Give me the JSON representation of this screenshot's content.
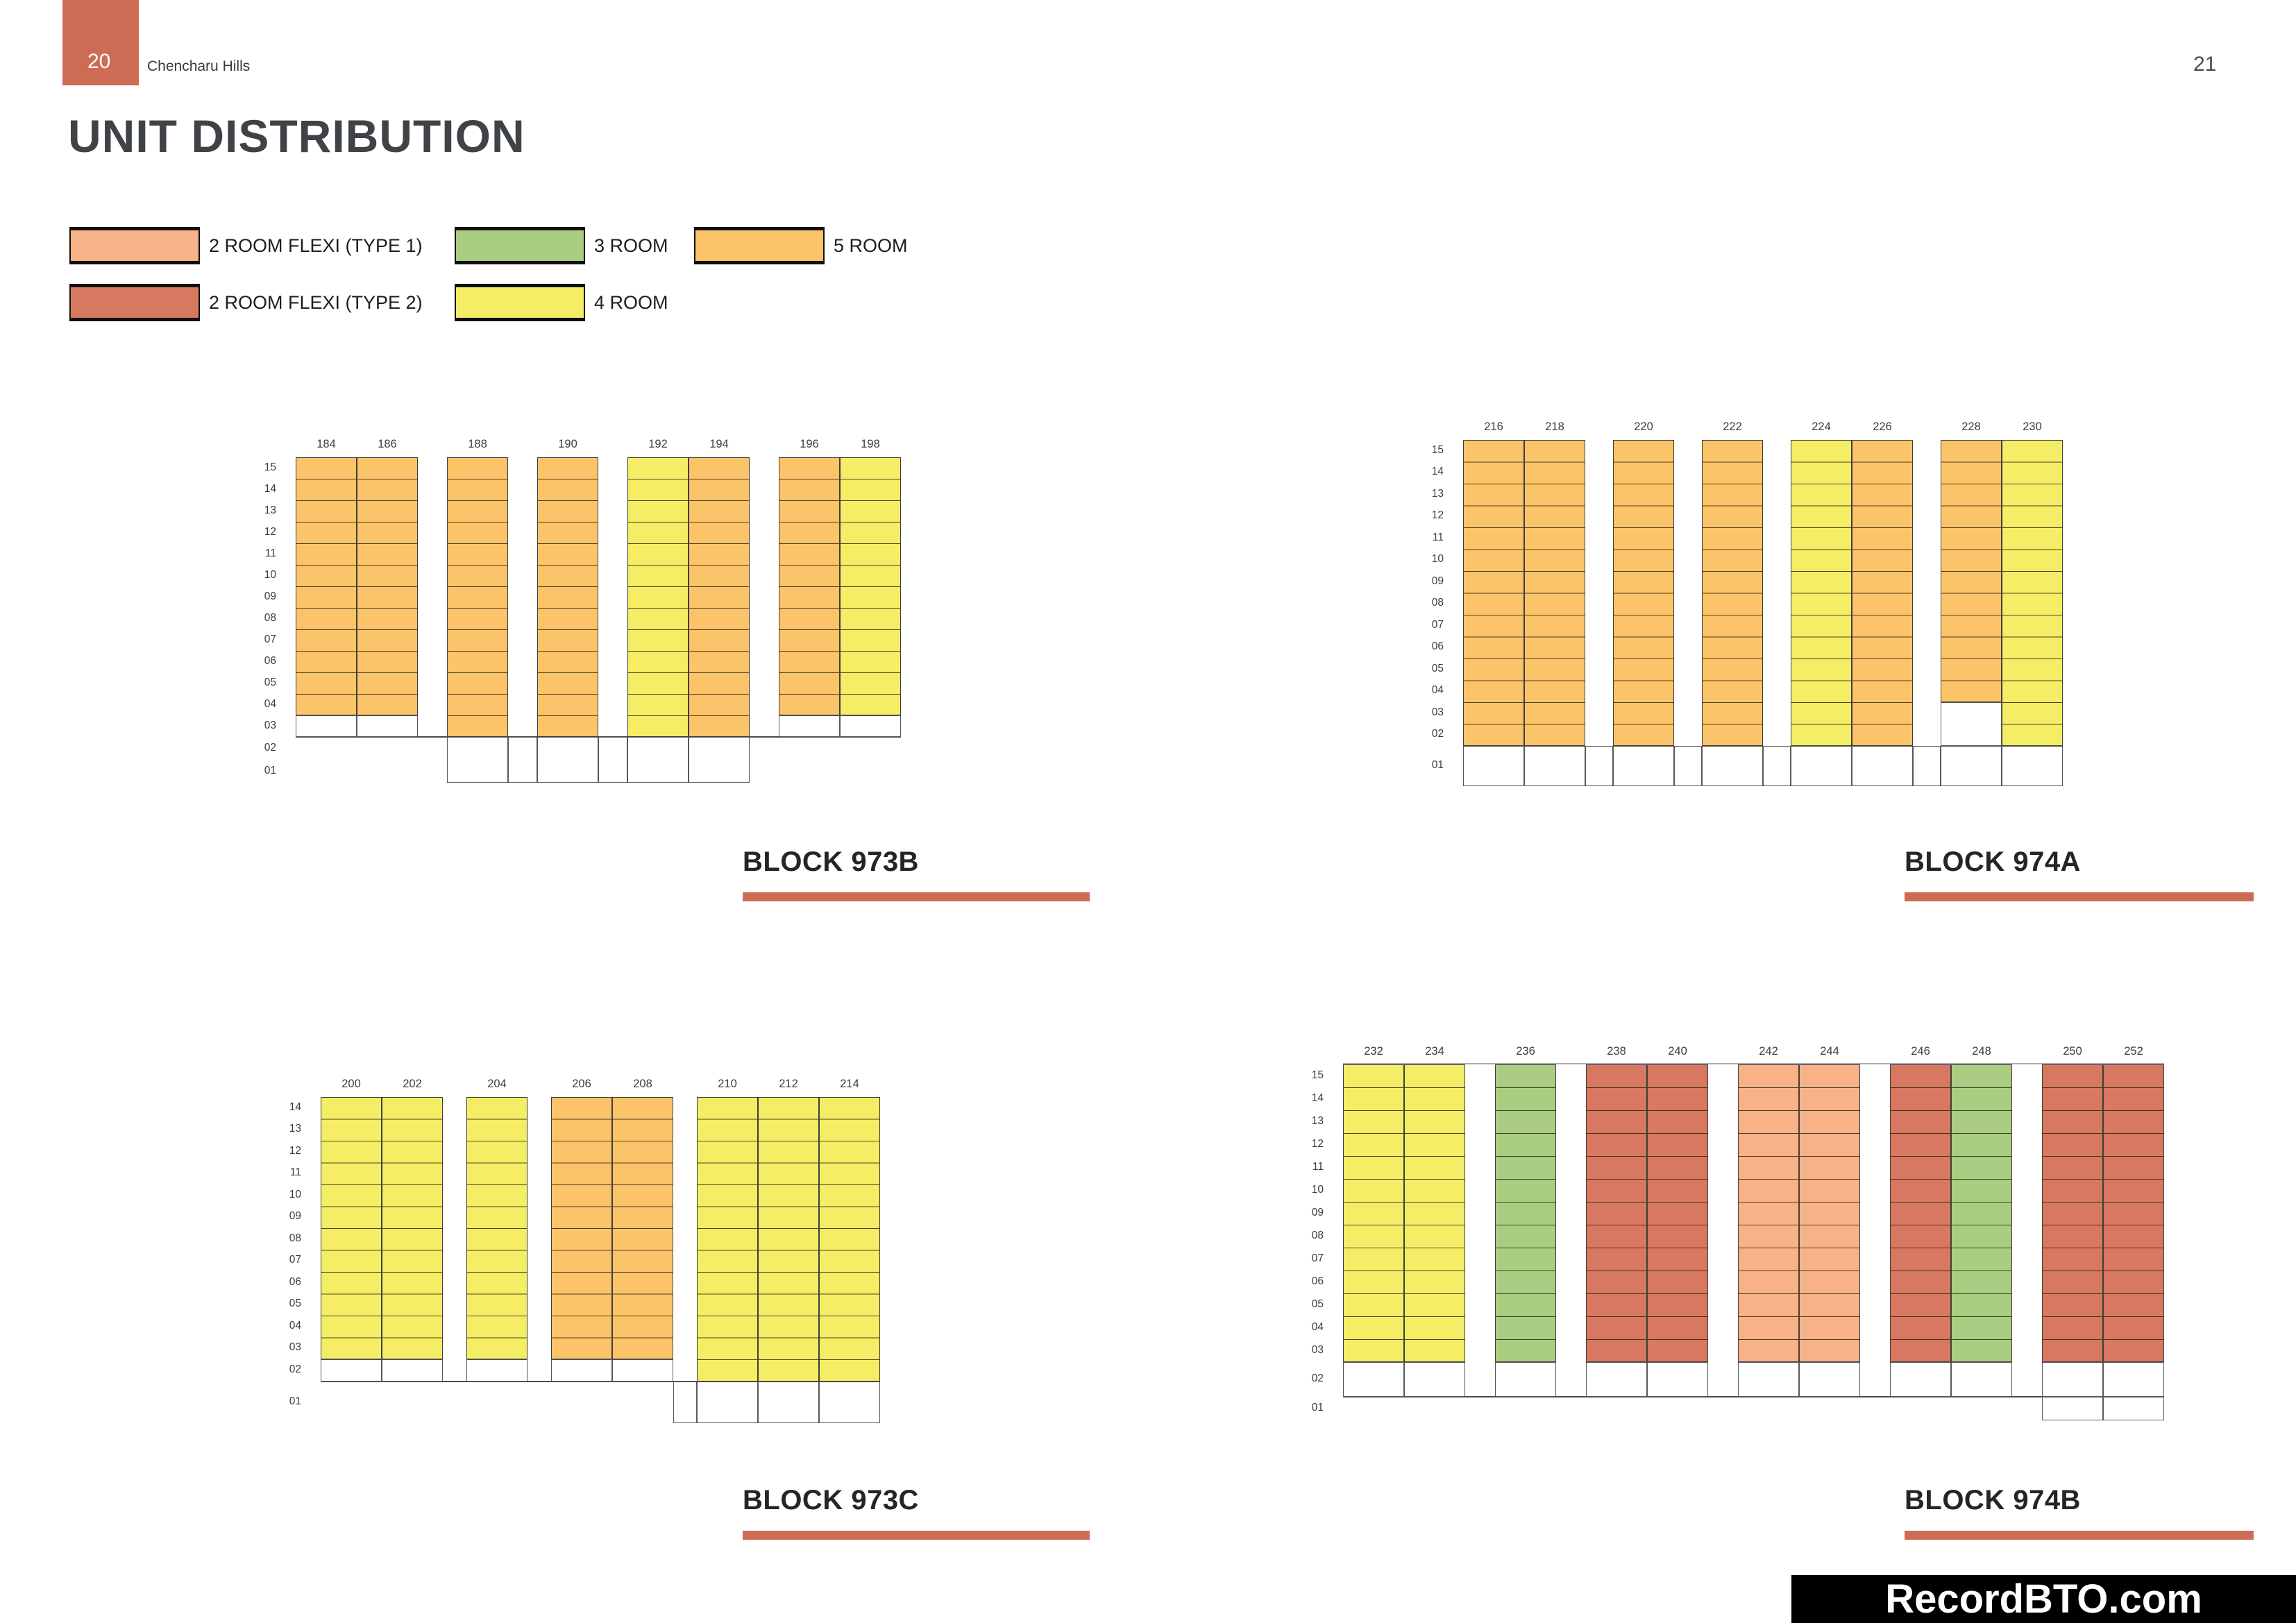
{
  "page": {
    "tab_page_number": "20",
    "project_name": "Chencharu Hills",
    "page_number_right": "21",
    "title": "UNIT DISTRIBUTION",
    "watermark": "RecordBTO.com"
  },
  "colors": {
    "5_room": "#FBC468",
    "4_room": "#F5ED65",
    "3_room": "#A9CD81",
    "2_room_flexi_type_1": "#F7B288",
    "2_room_flexi_type_2": "#D87861",
    "accent": "#CD6B55",
    "grid_line": "#3E3E3E",
    "void": "#FFFFFF"
  },
  "legend": {
    "items": [
      {
        "label": "2 ROOM FLEXI (TYPE 1)",
        "color_key": "2_room_flexi_type_1"
      },
      {
        "label": "2 ROOM FLEXI (TYPE 2)",
        "color_key": "2_room_flexi_type_2"
      },
      {
        "label": "3 ROOM",
        "color_key": "3_room"
      },
      {
        "label": "4 ROOM",
        "color_key": "4_room"
      },
      {
        "label": "5 ROOM",
        "color_key": "5_room"
      }
    ]
  },
  "chart_data": {
    "type": "heatmap",
    "title": "UNIT DISTRIBUTION",
    "legend_position": "top-left",
    "description": "Four HDB block charts; rows are floor levels, columns are unit stacks, cell color encodes flat type, white bordered cells are voids/ground level.",
    "blocks": [
      {
        "id": "973B",
        "name": "BLOCK 973B",
        "floors": [
          "15",
          "14",
          "13",
          "12",
          "11",
          "10",
          "09",
          "08",
          "07",
          "06",
          "05",
          "04",
          "03",
          "02",
          "01"
        ],
        "stack_groups": [
          [
            "184",
            "186"
          ],
          [
            "188"
          ],
          [
            "190"
          ],
          [
            "192",
            "194"
          ],
          [
            "196",
            "198"
          ]
        ],
        "units": {
          "184": [
            {
              "from": "15",
              "to": "04",
              "type": "5_room"
            },
            {
              "from": "03",
              "to": "03",
              "type": "void"
            }
          ],
          "186": [
            {
              "from": "15",
              "to": "04",
              "type": "5_room"
            },
            {
              "from": "03",
              "to": "03",
              "type": "void"
            }
          ],
          "188": [
            {
              "from": "15",
              "to": "03",
              "type": "5_room"
            }
          ],
          "190": [
            {
              "from": "15",
              "to": "03",
              "type": "5_room"
            }
          ],
          "192": [
            {
              "from": "15",
              "to": "03",
              "type": "4_room"
            }
          ],
          "194": [
            {
              "from": "15",
              "to": "03",
              "type": "5_room"
            }
          ],
          "196": [
            {
              "from": "15",
              "to": "04",
              "type": "5_room"
            },
            {
              "from": "03",
              "to": "03",
              "type": "void"
            }
          ],
          "198": [
            {
              "from": "15",
              "to": "04",
              "type": "4_room"
            },
            {
              "from": "03",
              "to": "03",
              "type": "void"
            }
          ]
        },
        "ground_strips": [
          {
            "floor_from": "02",
            "floor_to": "01",
            "start_stack": "188",
            "end_stack": "194",
            "include_gaps": true,
            "lead_gap": false
          }
        ],
        "full_width_line_after": "03",
        "top_line": false
      },
      {
        "id": "974A",
        "name": "BLOCK 974A",
        "floors": [
          "15",
          "14",
          "13",
          "12",
          "11",
          "10",
          "09",
          "08",
          "07",
          "06",
          "05",
          "04",
          "03",
          "02",
          "01"
        ],
        "stack_groups": [
          [
            "216",
            "218"
          ],
          [
            "220"
          ],
          [
            "222"
          ],
          [
            "224",
            "226"
          ],
          [
            "228",
            "230"
          ]
        ],
        "units": {
          "216": [
            {
              "from": "15",
              "to": "02",
              "type": "5_room"
            }
          ],
          "218": [
            {
              "from": "15",
              "to": "02",
              "type": "5_room"
            }
          ],
          "220": [
            {
              "from": "15",
              "to": "02",
              "type": "5_room"
            }
          ],
          "222": [
            {
              "from": "15",
              "to": "02",
              "type": "5_room"
            }
          ],
          "224": [
            {
              "from": "15",
              "to": "02",
              "type": "4_room"
            }
          ],
          "226": [
            {
              "from": "15",
              "to": "02",
              "type": "5_room"
            }
          ],
          "228": [
            {
              "from": "15",
              "to": "04",
              "type": "5_room"
            },
            {
              "from": "03",
              "to": "02",
              "type": "void"
            }
          ],
          "230": [
            {
              "from": "15",
              "to": "02",
              "type": "4_room"
            }
          ]
        },
        "ground_strips": [
          {
            "floor_from": "01",
            "floor_to": "01",
            "start_stack": "216",
            "end_stack": "230",
            "include_gaps": true,
            "lead_gap": false
          }
        ],
        "full_width_line_after": null,
        "top_line": false
      },
      {
        "id": "973C",
        "name": "BLOCK 973C",
        "floors": [
          "14",
          "13",
          "12",
          "11",
          "10",
          "09",
          "08",
          "07",
          "06",
          "05",
          "04",
          "03",
          "02",
          "01"
        ],
        "stack_groups": [
          [
            "200",
            "202"
          ],
          [
            "204"
          ],
          [
            "206",
            "208"
          ],
          [
            "210",
            "212",
            "214"
          ]
        ],
        "units": {
          "200": [
            {
              "from": "14",
              "to": "03",
              "type": "4_room"
            },
            {
              "from": "02",
              "to": "02",
              "type": "void"
            }
          ],
          "202": [
            {
              "from": "14",
              "to": "03",
              "type": "4_room"
            },
            {
              "from": "02",
              "to": "02",
              "type": "void"
            }
          ],
          "204": [
            {
              "from": "14",
              "to": "03",
              "type": "4_room"
            },
            {
              "from": "02",
              "to": "02",
              "type": "void"
            }
          ],
          "206": [
            {
              "from": "14",
              "to": "03",
              "type": "5_room"
            },
            {
              "from": "02",
              "to": "02",
              "type": "void"
            }
          ],
          "208": [
            {
              "from": "14",
              "to": "03",
              "type": "5_room"
            },
            {
              "from": "02",
              "to": "02",
              "type": "void"
            }
          ],
          "210": [
            {
              "from": "14",
              "to": "02",
              "type": "4_room"
            }
          ],
          "212": [
            {
              "from": "14",
              "to": "02",
              "type": "4_room"
            }
          ],
          "214": [
            {
              "from": "14",
              "to": "02",
              "type": "4_room"
            }
          ]
        },
        "ground_strips": [
          {
            "floor_from": "01",
            "floor_to": "01",
            "start_stack": "210",
            "end_stack": "214",
            "include_gaps": false,
            "lead_gap": true
          }
        ],
        "full_width_line_after": "02",
        "top_line": false
      },
      {
        "id": "974B",
        "name": "BLOCK 974B",
        "floors": [
          "15",
          "14",
          "13",
          "12",
          "11",
          "10",
          "09",
          "08",
          "07",
          "06",
          "05",
          "04",
          "03",
          "02",
          "01"
        ],
        "stack_groups": [
          [
            "232",
            "234"
          ],
          [
            "236"
          ],
          [
            "238",
            "240"
          ],
          [
            "242",
            "244"
          ],
          [
            "246",
            "248"
          ],
          [
            "250",
            "252"
          ]
        ],
        "units": {
          "232": [
            {
              "from": "15",
              "to": "03",
              "type": "4_room"
            },
            {
              "from": "02",
              "to": "02",
              "type": "void"
            }
          ],
          "234": [
            {
              "from": "15",
              "to": "03",
              "type": "4_room"
            },
            {
              "from": "02",
              "to": "02",
              "type": "void"
            }
          ],
          "236": [
            {
              "from": "15",
              "to": "03",
              "type": "3_room"
            },
            {
              "from": "02",
              "to": "02",
              "type": "void"
            }
          ],
          "238": [
            {
              "from": "15",
              "to": "03",
              "type": "2_room_flexi_type_2"
            },
            {
              "from": "02",
              "to": "02",
              "type": "void"
            }
          ],
          "240": [
            {
              "from": "15",
              "to": "03",
              "type": "2_room_flexi_type_2"
            },
            {
              "from": "02",
              "to": "02",
              "type": "void"
            }
          ],
          "242": [
            {
              "from": "15",
              "to": "03",
              "type": "2_room_flexi_type_1"
            },
            {
              "from": "02",
              "to": "02",
              "type": "void"
            }
          ],
          "244": [
            {
              "from": "15",
              "to": "03",
              "type": "2_room_flexi_type_1"
            },
            {
              "from": "02",
              "to": "02",
              "type": "void"
            }
          ],
          "246": [
            {
              "from": "15",
              "to": "03",
              "type": "2_room_flexi_type_2"
            },
            {
              "from": "02",
              "to": "02",
              "type": "void"
            }
          ],
          "248": [
            {
              "from": "15",
              "to": "03",
              "type": "3_room"
            },
            {
              "from": "02",
              "to": "02",
              "type": "void"
            }
          ],
          "250": [
            {
              "from": "15",
              "to": "03",
              "type": "2_room_flexi_type_2"
            },
            {
              "from": "02",
              "to": "02",
              "type": "void"
            }
          ],
          "252": [
            {
              "from": "15",
              "to": "03",
              "type": "2_room_flexi_type_2"
            },
            {
              "from": "02",
              "to": "02",
              "type": "void"
            }
          ]
        },
        "ground_strips": [
          {
            "floor_from": "01",
            "floor_to": "01",
            "start_stack": "250",
            "end_stack": "252",
            "include_gaps": false,
            "lead_gap": false
          }
        ],
        "full_width_line_after": "02",
        "top_line": true
      }
    ]
  }
}
